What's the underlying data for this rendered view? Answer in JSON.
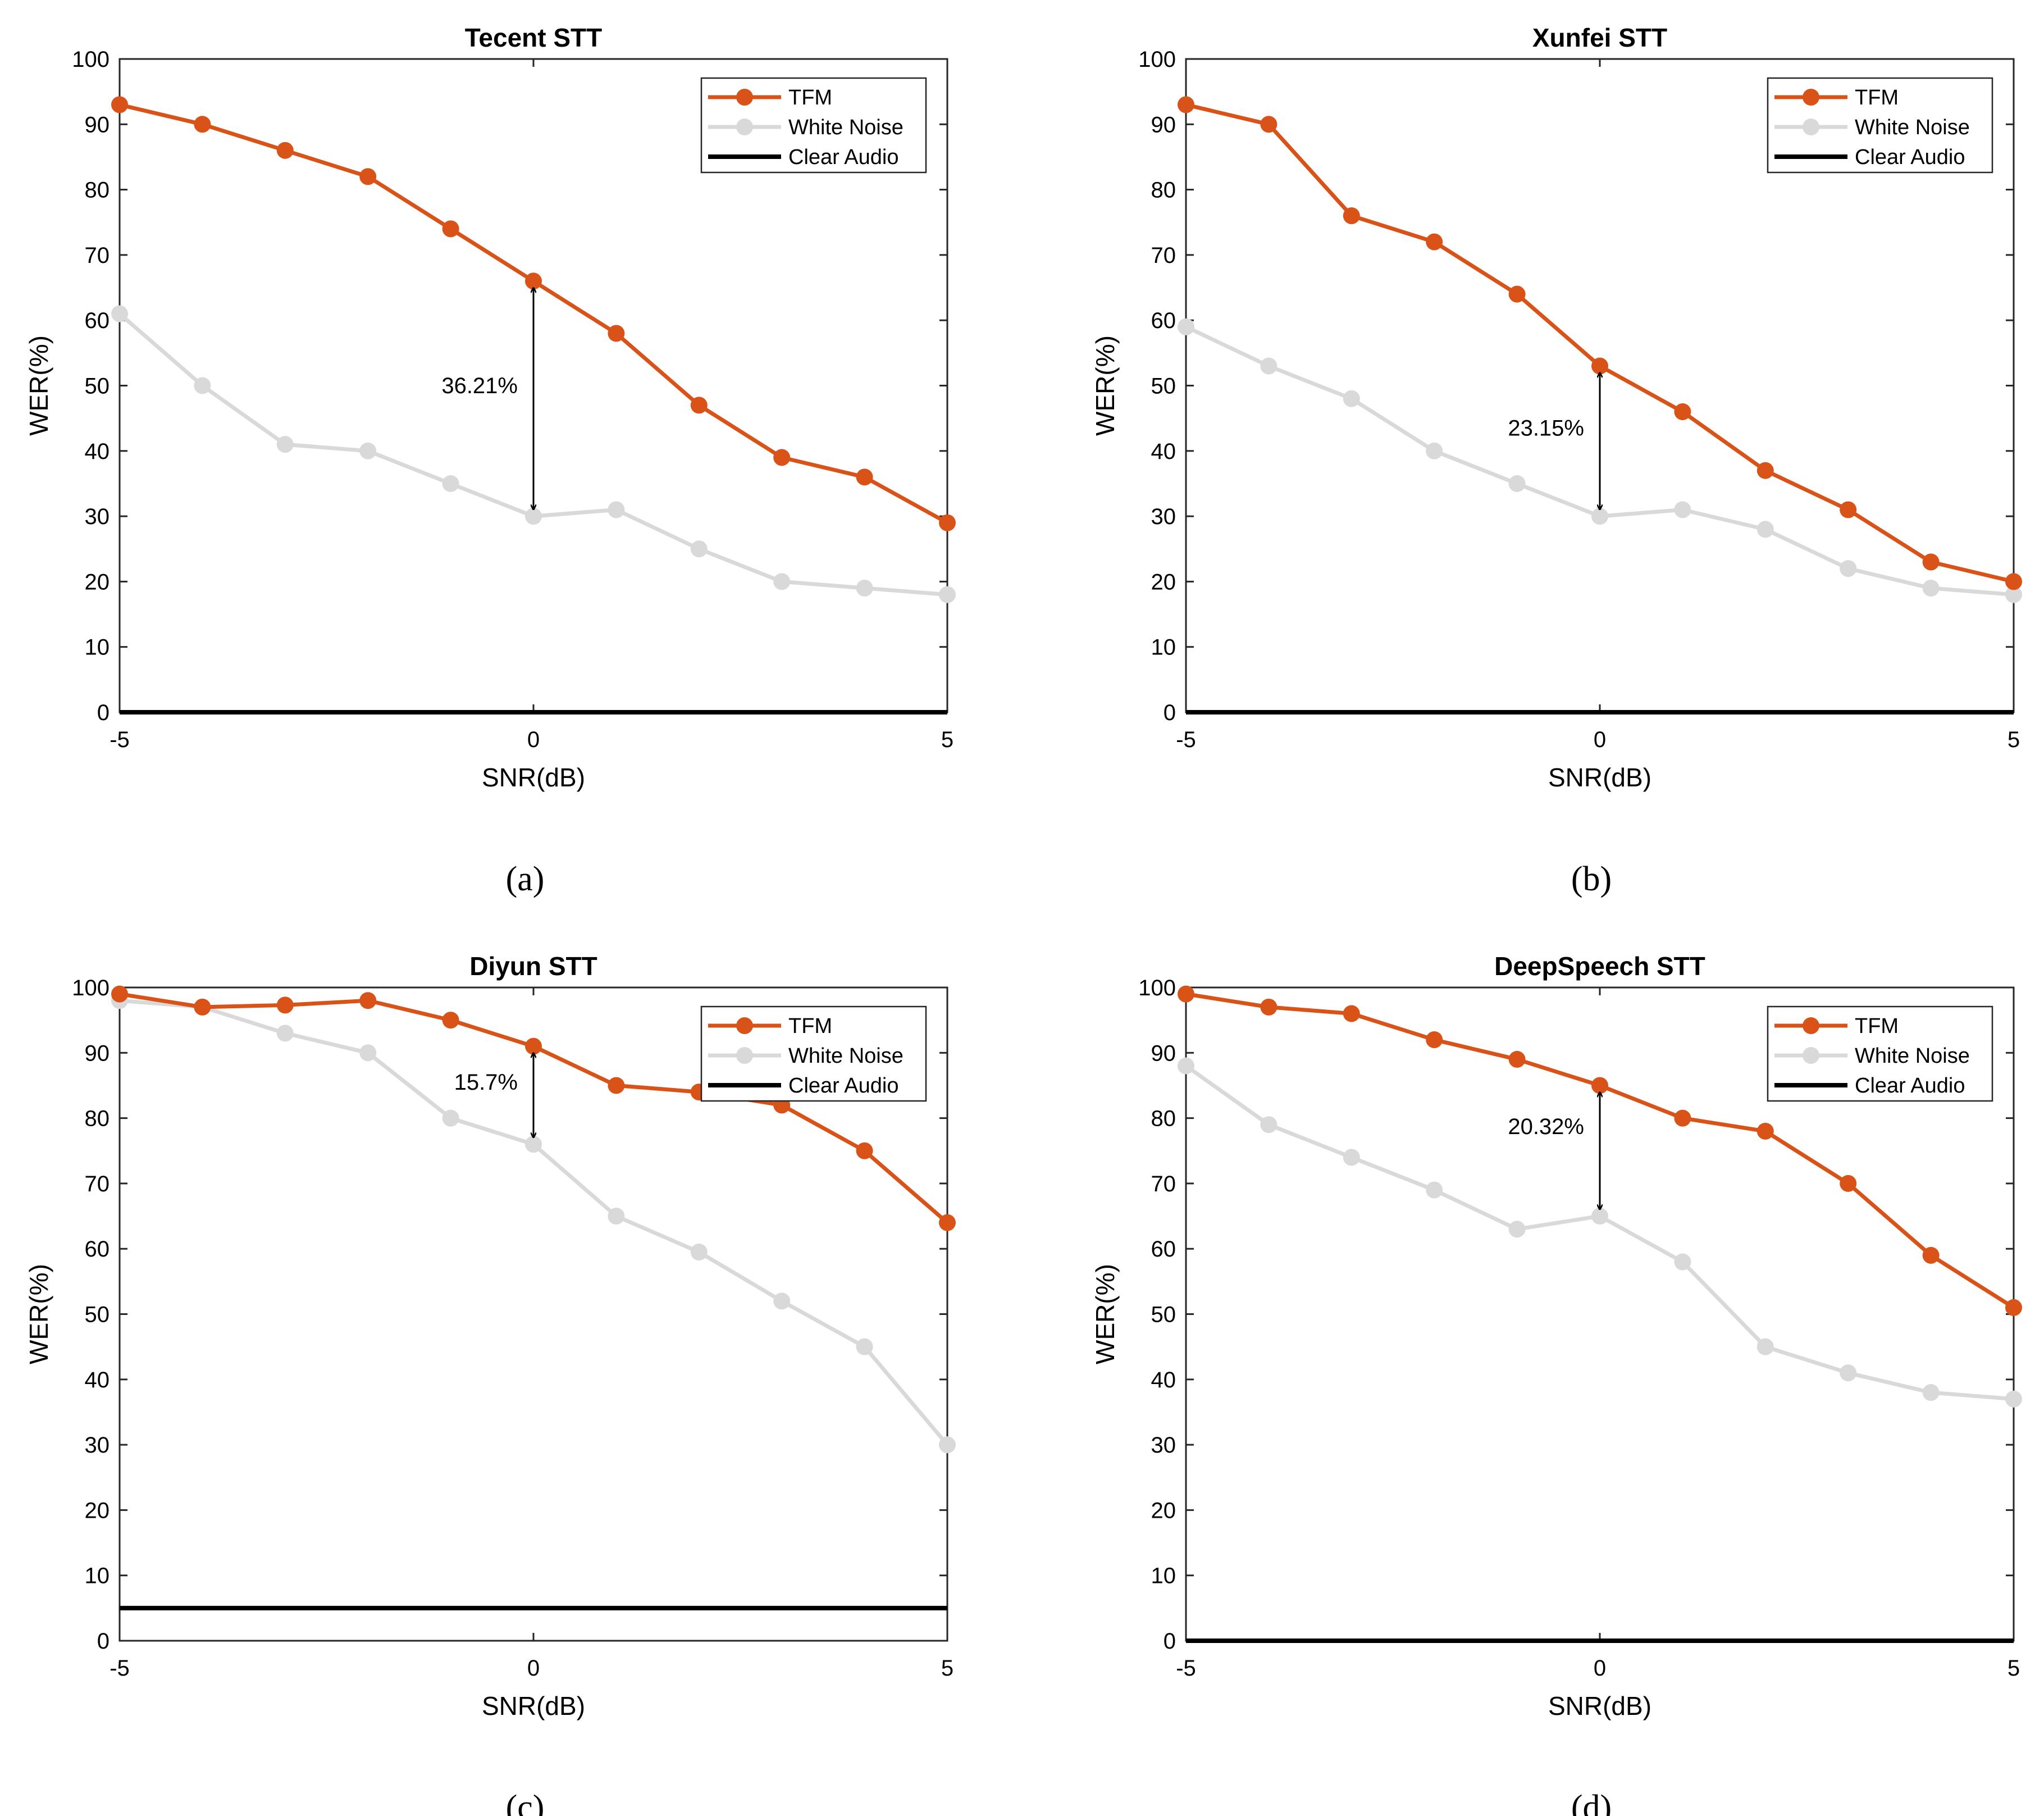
{
  "chart_data": [
    {
      "type": "line",
      "title": "Tecent STT",
      "caption": "(a)",
      "xlabel": "SNR(dB)",
      "ylabel": "WER(%)",
      "xlim": [
        -5,
        5
      ],
      "ylim": [
        0,
        100
      ],
      "xticks": [
        -5,
        0,
        5
      ],
      "xtick_labels": [
        "-5",
        "0",
        "5"
      ],
      "yticks": [
        0,
        10,
        20,
        30,
        40,
        50,
        60,
        70,
        80,
        90,
        100
      ],
      "ytick_labels": [
        "0",
        "10",
        "20",
        "30",
        "40",
        "50",
        "60",
        "70",
        "80",
        "90",
        "100"
      ],
      "x": [
        -5,
        -4,
        -3,
        -2,
        -1,
        0,
        1,
        2,
        3,
        4,
        5
      ],
      "legend_position": "top-right",
      "series": [
        {
          "name": "TFM",
          "color": "#d95319",
          "marker": "circle",
          "values": [
            93,
            90,
            86,
            82,
            74,
            66,
            58,
            47,
            39,
            36,
            29
          ]
        },
        {
          "name": "White Noise",
          "color": "#d9d9d9",
          "marker": "circle",
          "values": [
            61,
            50,
            41,
            40,
            35,
            30,
            31,
            25,
            20,
            19,
            18
          ]
        },
        {
          "name": "Clear Audio",
          "color": "#000000",
          "marker": "none",
          "values": [
            0,
            0,
            0,
            0,
            0,
            0,
            0,
            0,
            0,
            0,
            0
          ]
        }
      ],
      "annotation": {
        "text": "36.21%",
        "x": 0,
        "y_top": 66,
        "y_bottom": 30
      }
    },
    {
      "type": "line",
      "title": "Xunfei STT",
      "caption": "(b)",
      "xlabel": "SNR(dB)",
      "ylabel": "WER(%)",
      "xlim": [
        -5,
        5
      ],
      "ylim": [
        0,
        100
      ],
      "xticks": [
        -5,
        0,
        5
      ],
      "xtick_labels": [
        "-5",
        "0",
        "5"
      ],
      "yticks": [
        0,
        10,
        20,
        30,
        40,
        50,
        60,
        70,
        80,
        90,
        100
      ],
      "ytick_labels": [
        "0",
        "10",
        "20",
        "30",
        "40",
        "50",
        "60",
        "70",
        "80",
        "90",
        "100"
      ],
      "x": [
        -5,
        -4,
        -3,
        -2,
        -1,
        0,
        1,
        2,
        3,
        4,
        5
      ],
      "legend_position": "top-right",
      "series": [
        {
          "name": "TFM",
          "color": "#d95319",
          "marker": "circle",
          "values": [
            93,
            90,
            76,
            72,
            64,
            53,
            46,
            37,
            31,
            23,
            20
          ]
        },
        {
          "name": "White Noise",
          "color": "#d9d9d9",
          "marker": "circle",
          "values": [
            59,
            53,
            48,
            40,
            35,
            30,
            31,
            28,
            22,
            19,
            18
          ]
        },
        {
          "name": "Clear Audio",
          "color": "#000000",
          "marker": "none",
          "values": [
            0,
            0,
            0,
            0,
            0,
            0,
            0,
            0,
            0,
            0,
            0
          ]
        }
      ],
      "annotation": {
        "text": "23.15%",
        "x": 0,
        "y_top": 53,
        "y_bottom": 30
      }
    },
    {
      "type": "line",
      "title": "Diyun STT",
      "caption": "(c)",
      "xlabel": "SNR(dB)",
      "ylabel": "WER(%)",
      "xlim": [
        -5,
        5
      ],
      "ylim": [
        0,
        100
      ],
      "xticks": [
        -5,
        0,
        5
      ],
      "xtick_labels": [
        "-5",
        "0",
        "5"
      ],
      "yticks": [
        0,
        10,
        20,
        30,
        40,
        50,
        60,
        70,
        80,
        90,
        100
      ],
      "ytick_labels": [
        "0",
        "10",
        "20",
        "30",
        "40",
        "50",
        "60",
        "70",
        "80",
        "90",
        "100"
      ],
      "x": [
        -5,
        -4,
        -3,
        -2,
        -1,
        0,
        1,
        2,
        3,
        4,
        5
      ],
      "legend_position": "top-right",
      "series": [
        {
          "name": "TFM",
          "color": "#d95319",
          "marker": "circle",
          "values": [
            99,
            97,
            97.3,
            98,
            95,
            91,
            85,
            84,
            82,
            75,
            64
          ]
        },
        {
          "name": "White Noise",
          "color": "#d9d9d9",
          "marker": "circle",
          "values": [
            98,
            97,
            93,
            90,
            80,
            76,
            65,
            59.5,
            52,
            45,
            30
          ]
        },
        {
          "name": "Clear Audio",
          "color": "#000000",
          "marker": "none",
          "values": [
            5,
            5,
            5,
            5,
            5,
            5,
            5,
            5,
            5,
            5,
            5
          ]
        }
      ],
      "annotation": {
        "text": "15.7%",
        "x": 0,
        "y_top": 91,
        "y_bottom": 76
      }
    },
    {
      "type": "line",
      "title": "DeepSpeech STT",
      "caption": "(d)",
      "xlabel": "SNR(dB)",
      "ylabel": "WER(%)",
      "xlim": [
        -5,
        5
      ],
      "ylim": [
        0,
        100
      ],
      "xticks": [
        -5,
        0,
        5
      ],
      "xtick_labels": [
        "-5",
        "0",
        "5"
      ],
      "yticks": [
        0,
        10,
        20,
        30,
        40,
        50,
        60,
        70,
        80,
        90,
        100
      ],
      "ytick_labels": [
        "0",
        "10",
        "20",
        "30",
        "40",
        "50",
        "60",
        "70",
        "80",
        "90",
        "100"
      ],
      "x": [
        -5,
        -4,
        -3,
        -2,
        -1,
        0,
        1,
        2,
        3,
        4,
        5
      ],
      "legend_position": "top-right",
      "series": [
        {
          "name": "TFM",
          "color": "#d95319",
          "marker": "circle",
          "values": [
            99,
            97,
            96,
            92,
            89,
            85,
            80,
            78,
            70,
            59,
            51
          ]
        },
        {
          "name": "White Noise",
          "color": "#d9d9d9",
          "marker": "circle",
          "values": [
            88,
            79,
            74,
            69,
            63,
            65,
            58,
            45,
            41,
            38,
            37
          ]
        },
        {
          "name": "Clear Audio",
          "color": "#000000",
          "marker": "none",
          "values": [
            0,
            0,
            0,
            0,
            0,
            0,
            0,
            0,
            0,
            0,
            0
          ]
        }
      ],
      "annotation": {
        "text": "20.32%",
        "x": 0,
        "y_top": 85,
        "y_bottom": 65
      }
    }
  ]
}
